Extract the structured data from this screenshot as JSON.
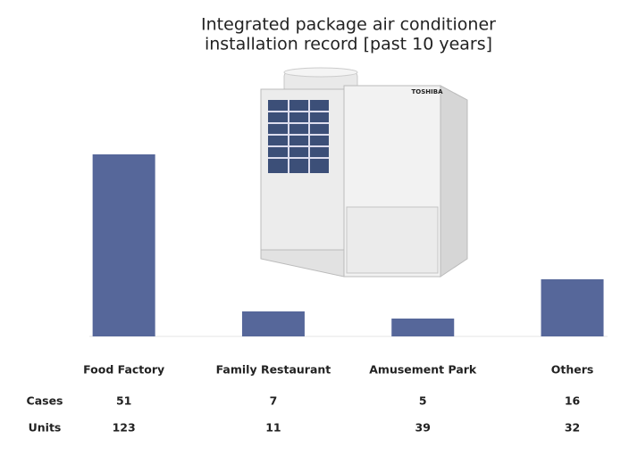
{
  "chart_data": {
    "type": "bar",
    "title": "Integrated package air conditioner",
    "subtitle": "installation record [past 10 years]",
    "categories": [
      "Food Factory",
      "Family Restaurant",
      "Amusement Park",
      "Others"
    ],
    "series": [
      {
        "name": "Cases",
        "color": "#56679a",
        "values": [
          51,
          7,
          5,
          16
        ]
      }
    ],
    "units": {
      "name": "Units",
      "values": [
        123,
        11,
        39,
        32
      ]
    }
  },
  "image": {
    "brand": "TOSHIBA"
  }
}
